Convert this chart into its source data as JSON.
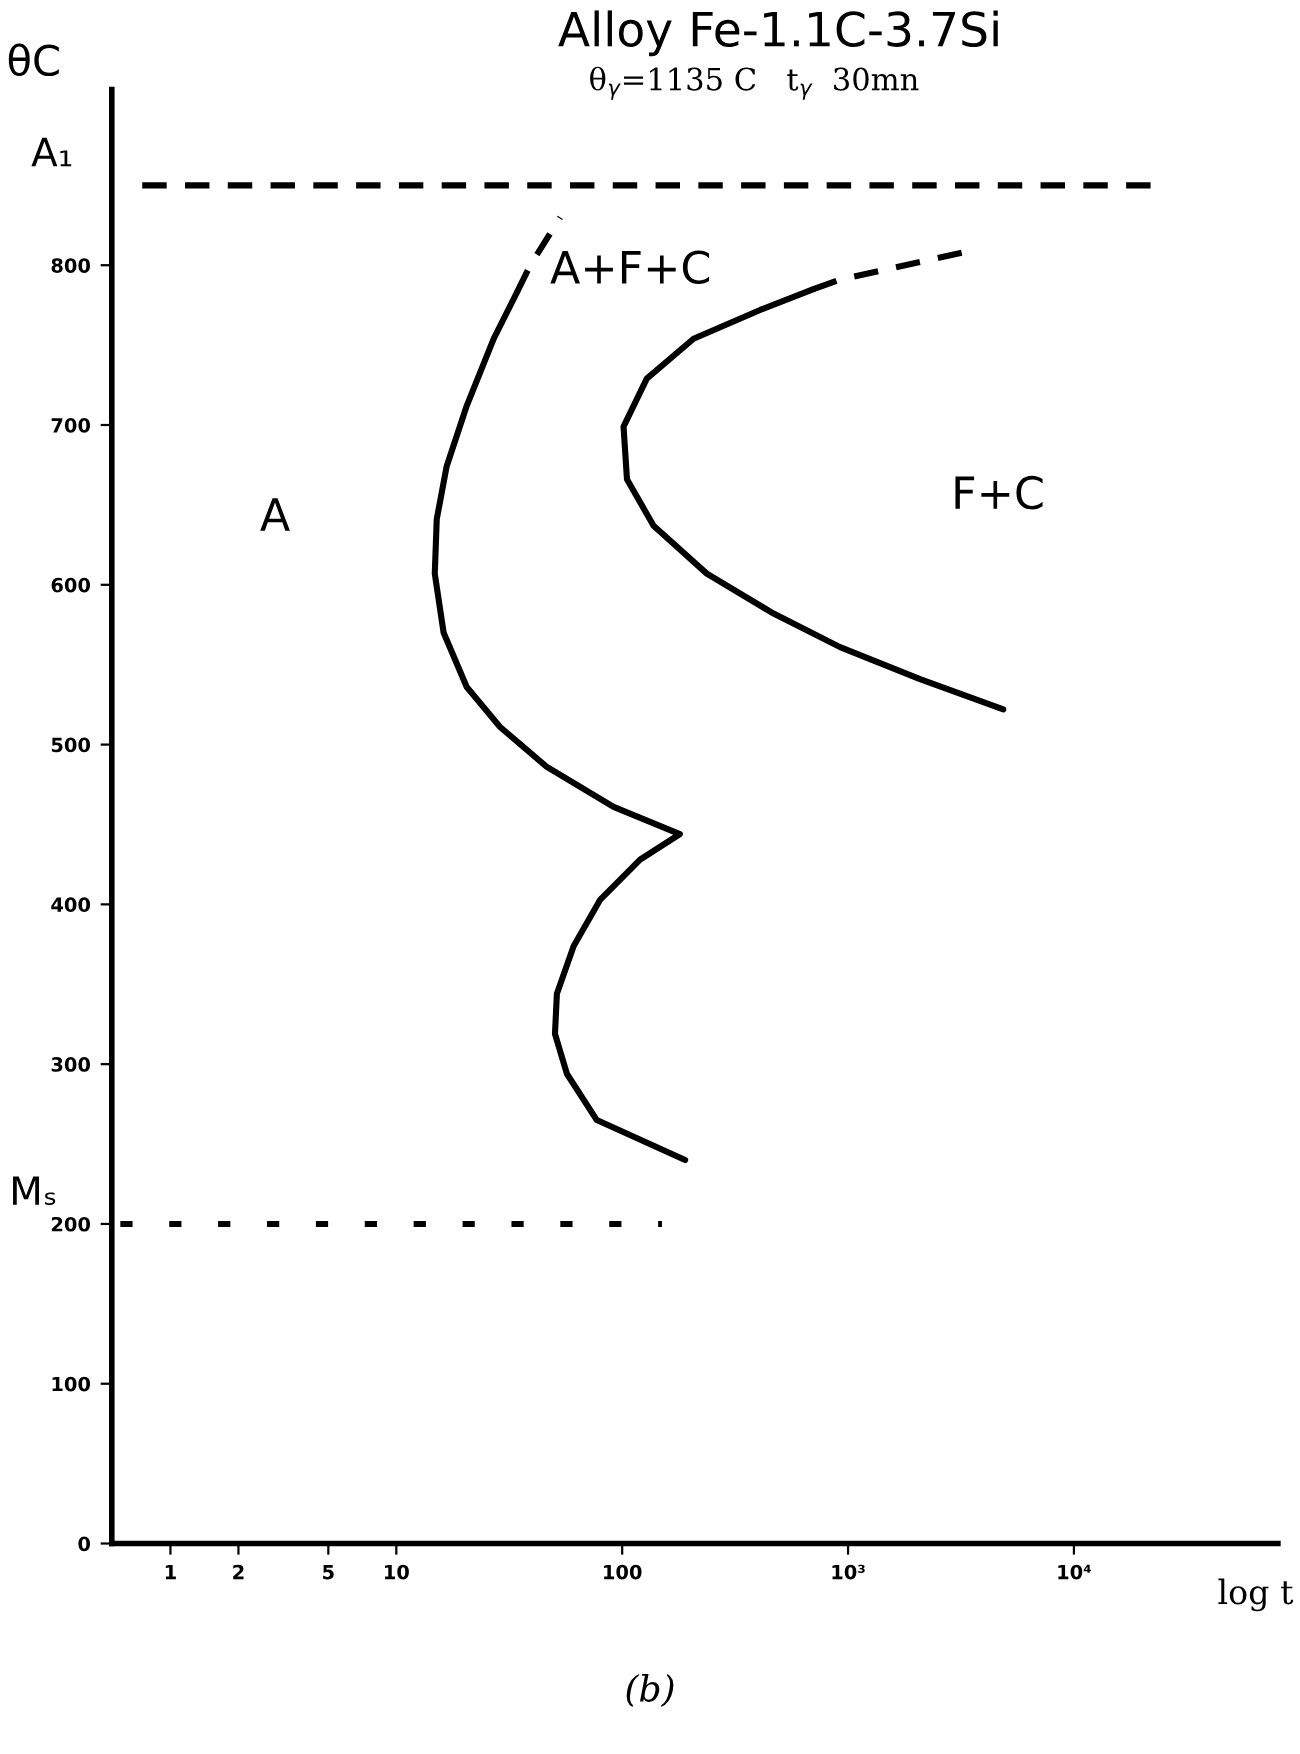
{
  "chart_data": {
    "type": "line",
    "title": "Alloy Fe-1.1C-3.7Si",
    "subtitle": "θ$_{γ}$=1135 C   t$_{γ}$  30mn",
    "xlabel": "log t",
    "ylabel": "θC",
    "log": "x",
    "xlim": [
      0.55,
      80000
    ],
    "ylim": [
      0,
      910
    ],
    "xticks": [
      1,
      2,
      5,
      10,
      100,
      {
        "value": 1000,
        "label": "10³"
      },
      {
        "value": 10000,
        "label": "10⁴"
      }
    ],
    "yticks": [
      0,
      100,
      200,
      300,
      400,
      500,
      600,
      700,
      800
    ],
    "grid": false,
    "legend": false,
    "marker": "none",
    "series": [
      {
        "color": "#000000",
        "line_style": "solid",
        "x": [
          34.2,
          27.0,
          20.5,
          16.7,
          15.1,
          14.8,
          16.2,
          20.5,
          28.8,
          46.4,
          91.6,
          180,
          120,
          80,
          61,
          51.4,
          50.4,
          56.9,
          77.2,
          190
        ],
        "values": [
          783,
          754,
          712,
          674,
          641,
          607,
          570,
          536,
          511,
          486,
          461,
          444,
          428,
          403,
          374,
          344,
          319,
          294,
          265,
          240
        ]
      },
      {
        "color": "#000000",
        "line_style": "dashed",
        "x": [
          34.2,
          39.2,
          53.2
        ],
        "values": [
          783,
          800,
          830
        ]
      },
      {
        "color": "#000000",
        "line_style": "solid",
        "x": [
          703,
          408,
          207,
          128.5,
          101.4,
          105,
          137.7,
          237,
          468,
          922,
          2083,
          4866
        ],
        "values": [
          785,
          772,
          754,
          729,
          699,
          666,
          637,
          607,
          582,
          561,
          541,
          522
        ]
      },
      {
        "color": "#000000",
        "line_style": "dashed",
        "x": [
          703,
          922,
          3243
        ],
        "values": [
          785,
          791,
          808
        ]
      },
      {
        "name": "A₁",
        "color": "#000000",
        "line_style": "dashed",
        "x": [
          0.75,
          22000
        ],
        "values": [
          850,
          850
        ]
      },
      {
        "name": "Mₛ",
        "color": "#000000",
        "line_style": "dotted",
        "x": [
          0.6,
          150
        ],
        "values": [
          200,
          200
        ]
      }
    ],
    "annotations": [
      "A",
      "A+F+C",
      "F+C",
      "(b)"
    ]
  }
}
